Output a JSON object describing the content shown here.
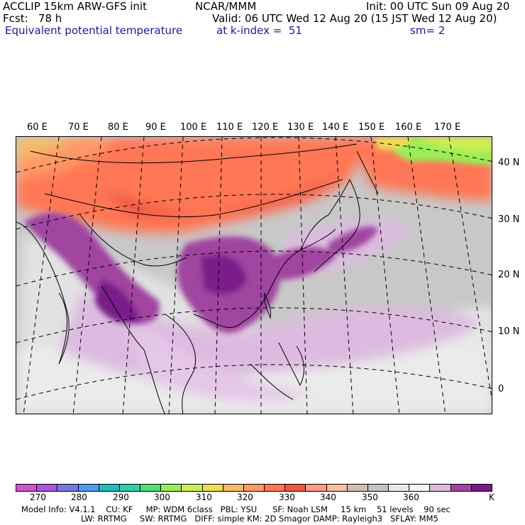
{
  "header": {
    "model": "ACCLIP 15km ARW-GFS init",
    "org": "NCAR/MMM",
    "init": "Init: 00 UTC Sun 09 Aug 20",
    "fcst": "Fcst:   78 h",
    "valid": "Valid: 06 UTC Wed 12 Aug 20 (15 JST Wed 12 Aug 20)",
    "field": "Equivalent potential temperature",
    "level": "at k-index =  51",
    "smooth": "sm= 2"
  },
  "map": {
    "lon_labels": [
      "60 E",
      "70 E",
      "80 E",
      "90 E",
      "100 E",
      "110 E",
      "120 E",
      "130 E",
      "140 E",
      "150 E",
      "160 E",
      "170 E"
    ],
    "lat_labels": [
      "40 N",
      "30 N",
      "20 N",
      "10 N",
      "0"
    ]
  },
  "colorbar": {
    "colors": [
      "#cc55cc",
      "#aa55dd",
      "#7777dd",
      "#5599ee",
      "#22bbbb",
      "#33ccaa",
      "#55dd77",
      "#99ee55",
      "#ccee55",
      "#eedd55",
      "#f5bb66",
      "#ff9966",
      "#ff7755",
      "#ee5544",
      "#ff9988",
      "#f5c0a0",
      "#d0bfb0",
      "#c4c4c4",
      "#e8e8e8",
      "#f4f4f4",
      "#ddbbe0",
      "#a044a0",
      "#7a1a8a"
    ],
    "ticks": [
      "270",
      "280",
      "290",
      "300",
      "310",
      "320",
      "330",
      "340",
      "350",
      "360",
      "K"
    ],
    "unit": "K"
  },
  "footer": {
    "line1": "Model Info: V4.1.1    CU: KF     MP: WDM 6class   PBL: YSU      SF: Noah LSM     15 km    51 levels    90 sec",
    "line2": "                       LW: RRTMG     SW: RRTMG   DIFF: simple KM: 2D Smagor DAMP: Rayleigh3   SFLAY: MM5"
  }
}
